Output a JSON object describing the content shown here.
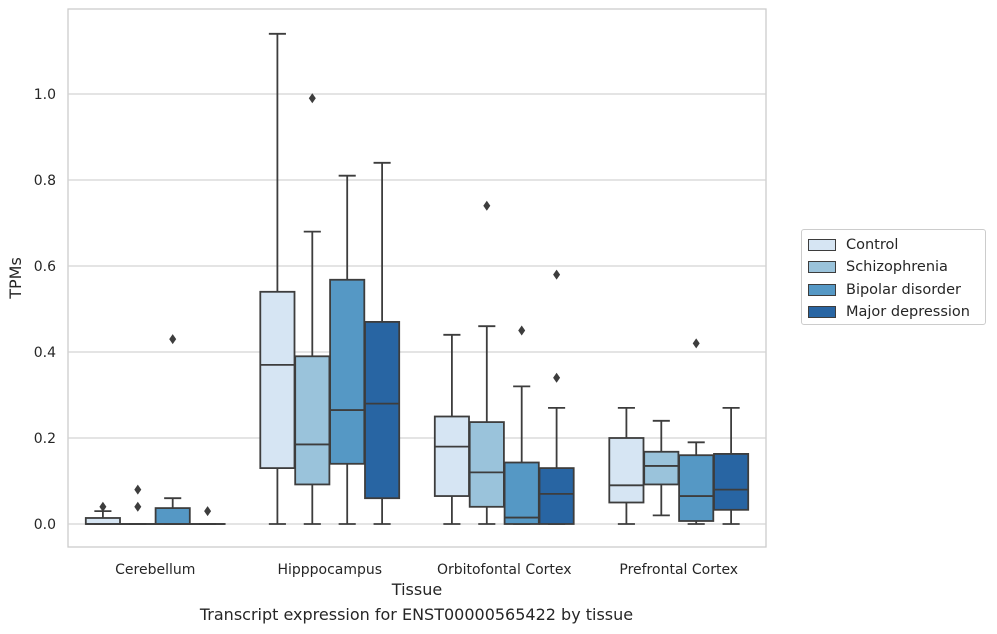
{
  "chart_data": {
    "type": "box",
    "xlabel": "Tissue",
    "ylabel": "TPMs",
    "ylim": [
      -0.055,
      1.2
    ],
    "yticks": [
      0.0,
      0.2,
      0.4,
      0.6,
      0.8,
      1.0
    ],
    "ytick_labels": [
      "0.0",
      "0.2",
      "0.4",
      "0.6",
      "0.8",
      "1.0"
    ],
    "grid": "horizontal",
    "legend_placement": "right",
    "categories": [
      "Cerebellum",
      "Hipppocampus",
      "Orbitofontal Cortex",
      "Prefrontal Cortex"
    ],
    "series": [
      {
        "name": "Control",
        "color": "#d6e5f3",
        "boxes": [
          {
            "whislo": 0.0,
            "q1": 0.0,
            "med": 0.0,
            "q3": 0.014,
            "whishi": 0.03,
            "fliers": [
              0.04
            ]
          },
          {
            "whislo": 0.0,
            "q1": 0.13,
            "med": 0.37,
            "q3": 0.54,
            "whishi": 1.14,
            "fliers": []
          },
          {
            "whislo": 0.0,
            "q1": 0.065,
            "med": 0.18,
            "q3": 0.25,
            "whishi": 0.44,
            "fliers": []
          },
          {
            "whislo": 0.0,
            "q1": 0.05,
            "med": 0.09,
            "q3": 0.2,
            "whishi": 0.27,
            "fliers": []
          }
        ]
      },
      {
        "name": "Schizophrenia",
        "color": "#9ac3db",
        "boxes": [
          {
            "whislo": 0.0,
            "q1": 0.0,
            "med": 0.0,
            "q3": 0.0,
            "whishi": 0.0,
            "fliers": [
              0.04,
              0.08
            ]
          },
          {
            "whislo": 0.0,
            "q1": 0.092,
            "med": 0.185,
            "q3": 0.39,
            "whishi": 0.68,
            "fliers": [
              0.99
            ]
          },
          {
            "whislo": 0.0,
            "q1": 0.04,
            "med": 0.12,
            "q3": 0.237,
            "whishi": 0.46,
            "fliers": [
              0.74
            ]
          },
          {
            "whislo": 0.02,
            "q1": 0.092,
            "med": 0.135,
            "q3": 0.168,
            "whishi": 0.24,
            "fliers": []
          }
        ]
      },
      {
        "name": "Bipolar disorder",
        "color": "#5598c5",
        "boxes": [
          {
            "whislo": 0.0,
            "q1": 0.0,
            "med": 0.0,
            "q3": 0.037,
            "whishi": 0.06,
            "fliers": [
              0.43
            ]
          },
          {
            "whislo": 0.0,
            "q1": 0.14,
            "med": 0.265,
            "q3": 0.568,
            "whishi": 0.81,
            "fliers": []
          },
          {
            "whislo": 0.0,
            "q1": 0.0,
            "med": 0.015,
            "q3": 0.143,
            "whishi": 0.32,
            "fliers": [
              0.45
            ]
          },
          {
            "whislo": 0.0,
            "q1": 0.007,
            "med": 0.065,
            "q3": 0.16,
            "whishi": 0.19,
            "fliers": [
              0.42
            ]
          }
        ]
      },
      {
        "name": "Major depression",
        "color": "#2865a3",
        "boxes": [
          {
            "whislo": 0.0,
            "q1": 0.0,
            "med": 0.0,
            "q3": 0.0,
            "whishi": 0.0,
            "fliers": [
              0.03
            ]
          },
          {
            "whislo": 0.0,
            "q1": 0.06,
            "med": 0.28,
            "q3": 0.47,
            "whishi": 0.84,
            "fliers": []
          },
          {
            "whislo": 0.0,
            "q1": 0.0,
            "med": 0.07,
            "q3": 0.13,
            "whishi": 0.27,
            "fliers": [
              0.34,
              0.58
            ]
          },
          {
            "whislo": 0.0,
            "q1": 0.033,
            "med": 0.08,
            "q3": 0.163,
            "whishi": 0.27,
            "fliers": []
          }
        ]
      }
    ]
  },
  "caption": "Transcript expression for ENST00000565422 by tissue"
}
